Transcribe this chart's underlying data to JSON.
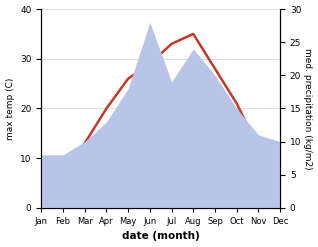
{
  "months": [
    "Jan",
    "Feb",
    "Mar",
    "Apr",
    "May",
    "Jun",
    "Jul",
    "Aug",
    "Sep",
    "Oct",
    "Nov",
    "Dec"
  ],
  "temperature": [
    3,
    8,
    13,
    20,
    26,
    29,
    33,
    35,
    28,
    21,
    12,
    6
  ],
  "precipitation": [
    8,
    8,
    10,
    13,
    18,
    28,
    19,
    24,
    20,
    15,
    11,
    10
  ],
  "temp_color": "#c0392b",
  "precip_fill_color": "#b8c4e8",
  "left_ylabel": "max temp (C)",
  "right_ylabel": "med. precipitation (kg/m2)",
  "xlabel": "date (month)",
  "left_ylim": [
    0,
    40
  ],
  "right_ylim": [
    0,
    30
  ],
  "left_yticks": [
    0,
    10,
    20,
    30,
    40
  ],
  "right_yticks": [
    0,
    5,
    10,
    15,
    20,
    25,
    30
  ],
  "background_color": "#ffffff",
  "grid_color": "#d0d0d0"
}
